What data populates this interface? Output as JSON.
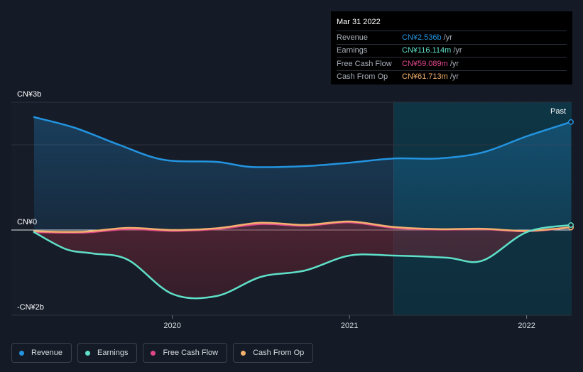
{
  "tooltip": {
    "date": "Mar 31 2022",
    "rows": [
      {
        "label": "Revenue",
        "value": "CN¥2.536b",
        "unit": "/yr",
        "color": "#2394df"
      },
      {
        "label": "Earnings",
        "value": "CN¥116.114m",
        "unit": "/yr",
        "color": "#5fe0c8"
      },
      {
        "label": "Free Cash Flow",
        "value": "CN¥59.089m",
        "unit": "/yr",
        "color": "#e0488b"
      },
      {
        "label": "Cash From Op",
        "value": "CN¥61.713m",
        "unit": "/yr",
        "color": "#f3b06e"
      }
    ]
  },
  "past_label": "Past",
  "legend": [
    {
      "label": "Revenue",
      "color": "#2394df"
    },
    {
      "label": "Earnings",
      "color": "#5fe0c8"
    },
    {
      "label": "Free Cash Flow",
      "color": "#e0488b"
    },
    {
      "label": "Cash From Op",
      "color": "#f3b06e"
    }
  ],
  "chart_data": {
    "type": "line",
    "unit": "CN¥ billions",
    "ylim": [
      -2,
      3
    ],
    "ytick_labels": [
      {
        "value": 3,
        "label": "CN¥3b"
      },
      {
        "value": 0,
        "label": "CN¥0"
      },
      {
        "value": -2,
        "label": "-CN¥2b"
      }
    ],
    "xlim": [
      2019.22,
      2022.25
    ],
    "xtick_labels": [
      {
        "value": 2020,
        "label": "2020"
      },
      {
        "value": 2021,
        "label": "2021"
      },
      {
        "value": 2022,
        "label": "2022"
      }
    ],
    "past_region_start": 2021.25,
    "series": [
      {
        "name": "Revenue",
        "color": "#2394df",
        "fill": true,
        "points": [
          [
            2019.22,
            2.65
          ],
          [
            2019.45,
            2.4
          ],
          [
            2019.7,
            2.0
          ],
          [
            2019.95,
            1.65
          ],
          [
            2020.25,
            1.6
          ],
          [
            2020.45,
            1.48
          ],
          [
            2020.75,
            1.5
          ],
          [
            2021.0,
            1.58
          ],
          [
            2021.25,
            1.68
          ],
          [
            2021.5,
            1.68
          ],
          [
            2021.75,
            1.82
          ],
          [
            2022.0,
            2.2
          ],
          [
            2022.25,
            2.536
          ]
        ]
      },
      {
        "name": "Earnings",
        "color": "#5fe0c8",
        "fill": false,
        "points": [
          [
            2019.22,
            -0.05
          ],
          [
            2019.4,
            -0.45
          ],
          [
            2019.55,
            -0.55
          ],
          [
            2019.75,
            -0.7
          ],
          [
            2020.0,
            -1.5
          ],
          [
            2020.25,
            -1.55
          ],
          [
            2020.5,
            -1.1
          ],
          [
            2020.75,
            -0.95
          ],
          [
            2021.0,
            -0.6
          ],
          [
            2021.25,
            -0.6
          ],
          [
            2021.55,
            -0.65
          ],
          [
            2021.75,
            -0.72
          ],
          [
            2022.0,
            -0.05
          ],
          [
            2022.25,
            0.116
          ]
        ]
      },
      {
        "name": "Free Cash Flow",
        "color": "#e0488b",
        "fill": true,
        "points": [
          [
            2019.22,
            -0.05
          ],
          [
            2019.5,
            -0.06
          ],
          [
            2019.75,
            0.02
          ],
          [
            2020.0,
            -0.02
          ],
          [
            2020.25,
            0.02
          ],
          [
            2020.5,
            0.14
          ],
          [
            2020.75,
            0.1
          ],
          [
            2021.0,
            0.18
          ],
          [
            2021.25,
            0.05
          ],
          [
            2021.5,
            0.01
          ],
          [
            2021.75,
            0.02
          ],
          [
            2022.0,
            -0.03
          ],
          [
            2022.25,
            0.059
          ]
        ]
      },
      {
        "name": "Cash From Op",
        "color": "#f3b06e",
        "fill": false,
        "points": [
          [
            2019.22,
            -0.03
          ],
          [
            2019.5,
            -0.04
          ],
          [
            2019.75,
            0.05
          ],
          [
            2020.0,
            0.0
          ],
          [
            2020.25,
            0.04
          ],
          [
            2020.5,
            0.17
          ],
          [
            2020.75,
            0.12
          ],
          [
            2021.0,
            0.2
          ],
          [
            2021.25,
            0.07
          ],
          [
            2021.5,
            0.02
          ],
          [
            2021.75,
            0.03
          ],
          [
            2022.0,
            -0.02
          ],
          [
            2022.25,
            0.062
          ]
        ]
      }
    ]
  }
}
